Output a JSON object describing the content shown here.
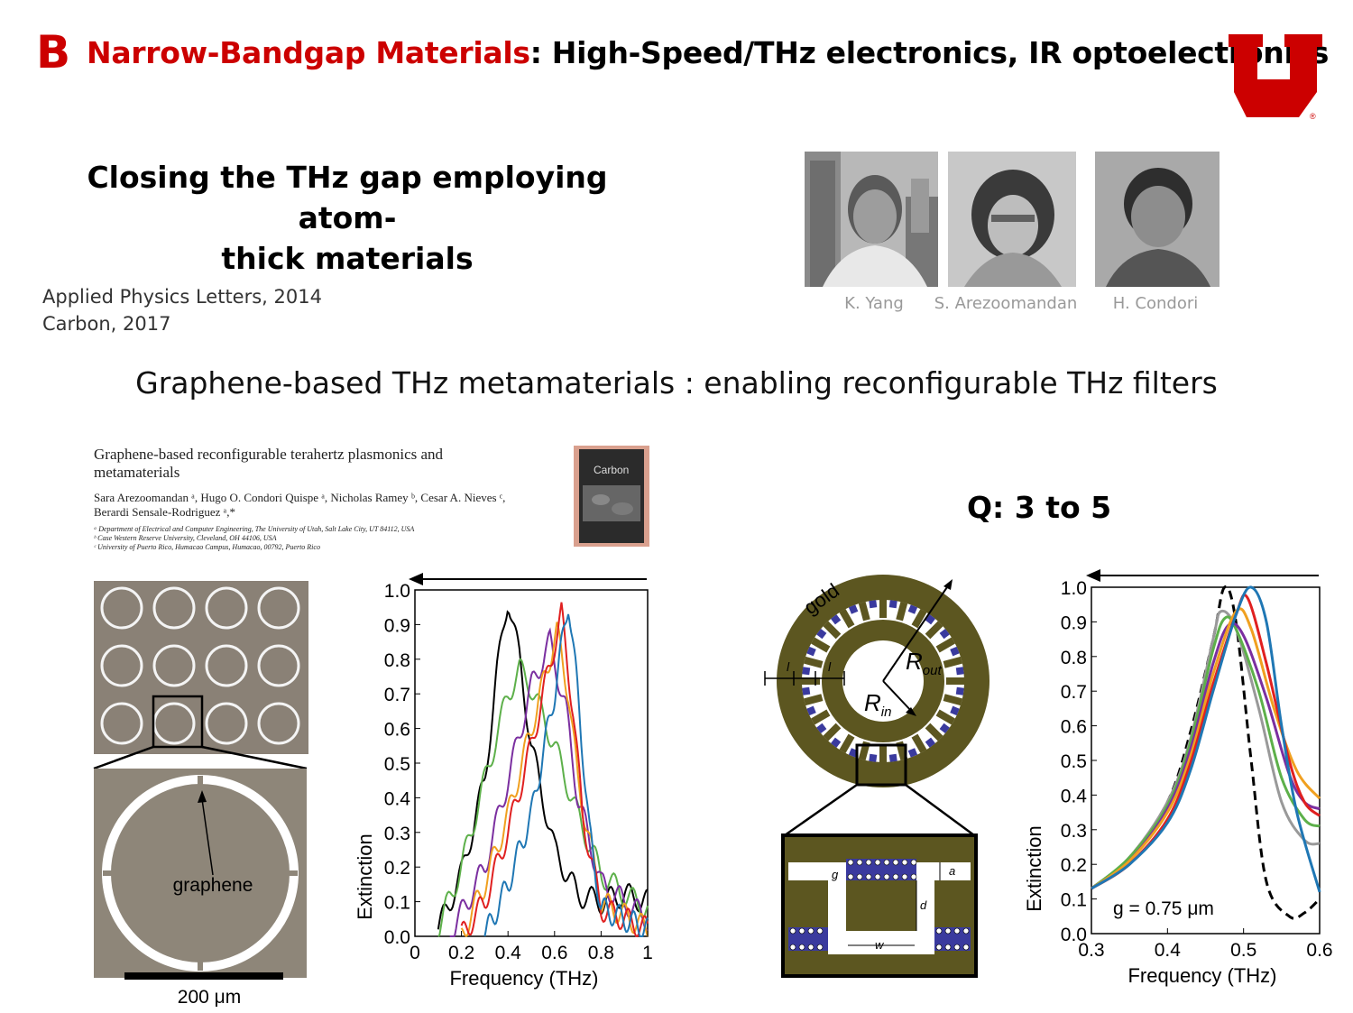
{
  "header": {
    "letter": "B",
    "title_red": "Narrow-Bandgap Materials",
    "title_black": ": High-Speed/THz electronics, IR optoelectronics"
  },
  "subtitle": {
    "line1": "Closing the THz gap employing atom-",
    "line2": "thick materials"
  },
  "references": [
    "Applied Physics Letters, 2014",
    "Carbon, 2017"
  ],
  "people": [
    {
      "name": "K. Yang"
    },
    {
      "name": "S. Arezoomandan"
    },
    {
      "name": "H. Condori"
    }
  ],
  "main_heading": "Graphene-based THz metamaterials :  enabling reconfigurable THz filters",
  "paper": {
    "title_line1": "Graphene-based reconfigurable terahertz plasmonics and",
    "title_line2": "metamaterials",
    "authors_line1": "Sara Arezoomandan ᵃ, Hugo O. Condori Quispe ᵃ, Nicholas Ramey ᵇ, Cesar A. Nieves ᶜ,",
    "authors_line2": "Berardi Sensale-Rodriguez ᵃ,*",
    "affiliation_a": "ᵃ Department of Electrical and Computer Engineering, The University of Utah, Salt Lake City, UT 84112, USA",
    "affiliation_b": "ᵇ Case Western Reserve University, Cleveland, OH 44106, USA",
    "affiliation_c": "ᶜ University of Puerto Rico, Humacao Campus, Humacao, 00792, Puerto Rico",
    "journal_cover": "Carbon"
  },
  "q_label": "Q: 3 to 5",
  "micrograph": {
    "graphene_label": "graphene",
    "scale_label": "200 μm"
  },
  "ring_diagram": {
    "gold_label": "gold",
    "r_out": "R",
    "r_out_sub": "out",
    "r_in": "R",
    "r_in_sub": "in",
    "l_label": "l",
    "g_label": "g",
    "a_label": "a",
    "d_label": "d",
    "w_label": "w"
  },
  "colors": {
    "brand_red": "#cc0000",
    "gold": "#5c5620",
    "graphene": "#3a3a9e"
  },
  "chart_data": [
    {
      "type": "line",
      "xlabel": "Frequency (THz)",
      "ylabel": "Extinction",
      "xlim": [
        0,
        1
      ],
      "ylim": [
        0,
        1
      ],
      "xticks": [
        "0",
        "0.2",
        "0.4",
        "0.6",
        "0.8",
        "1"
      ],
      "yticks": [
        "0.0",
        "0.1",
        "0.2",
        "0.3",
        "0.4",
        "0.5",
        "0.6",
        "0.7",
        "0.8",
        "0.9",
        "1.0"
      ],
      "series": [
        {
          "color": "#000000",
          "peak_x": 0.4,
          "peak_y": 0.98,
          "x": [
            0.1,
            0.2,
            0.3,
            0.35,
            0.4,
            0.45,
            0.5,
            0.6,
            0.7,
            0.8,
            0.9,
            1.0
          ],
          "y": [
            0.02,
            0.18,
            0.45,
            0.75,
            0.98,
            0.8,
            0.55,
            0.25,
            0.12,
            0.1,
            0.12,
            0.1
          ]
        },
        {
          "color": "#5db04a",
          "peak_x": 0.45,
          "peak_y": 0.77,
          "x": [
            0.1,
            0.2,
            0.3,
            0.4,
            0.45,
            0.5,
            0.6,
            0.7,
            0.8,
            0.9,
            1.0
          ],
          "y": [
            0.02,
            0.2,
            0.45,
            0.7,
            0.77,
            0.72,
            0.55,
            0.35,
            0.18,
            0.12,
            0.08
          ]
        },
        {
          "color": "#7b2fa0",
          "peak_x": 0.58,
          "peak_y": 0.85,
          "x": [
            0.15,
            0.3,
            0.4,
            0.5,
            0.58,
            0.65,
            0.7,
            0.8,
            1.0
          ],
          "y": [
            0.0,
            0.2,
            0.45,
            0.72,
            0.85,
            0.65,
            0.4,
            0.15,
            0.05
          ]
        },
        {
          "color": "#f0a020",
          "peak_x": 0.61,
          "peak_y": 0.88,
          "x": [
            0.2,
            0.3,
            0.4,
            0.5,
            0.61,
            0.66,
            0.7,
            0.8,
            1.0
          ],
          "y": [
            0.0,
            0.15,
            0.35,
            0.6,
            0.88,
            0.7,
            0.45,
            0.1,
            0.02
          ]
        },
        {
          "color": "#e02020",
          "peak_x": 0.63,
          "peak_y": 0.93,
          "x": [
            0.2,
            0.3,
            0.4,
            0.5,
            0.63,
            0.68,
            0.72,
            0.8,
            1.0
          ],
          "y": [
            0.0,
            0.1,
            0.3,
            0.55,
            0.93,
            0.65,
            0.35,
            0.08,
            0.02
          ]
        },
        {
          "color": "#1f77b4",
          "peak_x": 0.66,
          "peak_y": 0.97,
          "x": [
            0.3,
            0.4,
            0.5,
            0.6,
            0.66,
            0.7,
            0.75,
            0.8,
            1.0
          ],
          "y": [
            0.0,
            0.15,
            0.35,
            0.7,
            0.97,
            0.7,
            0.3,
            0.08,
            0.02
          ]
        }
      ]
    },
    {
      "type": "line",
      "xlabel": "Frequency (THz)",
      "ylabel": "Extinction",
      "xlim": [
        0.3,
        0.6
      ],
      "ylim": [
        0,
        1
      ],
      "xticks": [
        "0.3",
        "0.4",
        "0.5",
        "0.6"
      ],
      "yticks": [
        "0.0",
        "0.1",
        "0.2",
        "0.3",
        "0.4",
        "0.5",
        "0.6",
        "0.7",
        "0.8",
        "0.9",
        "1.0"
      ],
      "annotation": "g = 0.75 μm",
      "series": [
        {
          "color": "#000000",
          "dashed": true,
          "x": [
            0.3,
            0.35,
            0.4,
            0.43,
            0.46,
            0.475,
            0.49,
            0.51,
            0.53,
            0.56,
            0.58,
            0.6
          ],
          "y": [
            0.13,
            0.22,
            0.38,
            0.58,
            0.85,
            1.0,
            0.9,
            0.5,
            0.15,
            0.05,
            0.06,
            0.1
          ]
        },
        {
          "color": "#999999",
          "x": [
            0.3,
            0.35,
            0.4,
            0.43,
            0.46,
            0.47,
            0.49,
            0.52,
            0.55,
            0.58,
            0.6
          ],
          "y": [
            0.13,
            0.22,
            0.38,
            0.56,
            0.85,
            0.93,
            0.88,
            0.65,
            0.38,
            0.27,
            0.26
          ]
        },
        {
          "color": "#5db04a",
          "x": [
            0.3,
            0.35,
            0.4,
            0.43,
            0.46,
            0.475,
            0.49,
            0.52,
            0.55,
            0.58,
            0.6
          ],
          "y": [
            0.13,
            0.22,
            0.37,
            0.55,
            0.82,
            0.91,
            0.88,
            0.7,
            0.45,
            0.33,
            0.31
          ]
        },
        {
          "color": "#7b2fa0",
          "x": [
            0.3,
            0.35,
            0.4,
            0.43,
            0.46,
            0.48,
            0.5,
            0.53,
            0.56,
            0.58,
            0.6
          ],
          "y": [
            0.13,
            0.21,
            0.36,
            0.53,
            0.78,
            0.89,
            0.86,
            0.68,
            0.46,
            0.38,
            0.36
          ]
        },
        {
          "color": "#f0a020",
          "x": [
            0.3,
            0.35,
            0.4,
            0.43,
            0.46,
            0.49,
            0.51,
            0.54,
            0.57,
            0.6
          ],
          "y": [
            0.13,
            0.21,
            0.35,
            0.51,
            0.75,
            0.93,
            0.88,
            0.65,
            0.47,
            0.39
          ]
        },
        {
          "color": "#e02020",
          "x": [
            0.3,
            0.35,
            0.4,
            0.43,
            0.46,
            0.49,
            0.505,
            0.53,
            0.56,
            0.58,
            0.6
          ],
          "y": [
            0.13,
            0.2,
            0.33,
            0.49,
            0.72,
            0.92,
            0.97,
            0.78,
            0.5,
            0.38,
            0.34
          ]
        },
        {
          "color": "#1f77b4",
          "x": [
            0.3,
            0.35,
            0.4,
            0.43,
            0.46,
            0.49,
            0.51,
            0.53,
            0.55,
            0.57,
            0.6
          ],
          "y": [
            0.13,
            0.2,
            0.32,
            0.47,
            0.7,
            0.92,
            1.0,
            0.9,
            0.6,
            0.35,
            0.12
          ]
        }
      ]
    }
  ]
}
